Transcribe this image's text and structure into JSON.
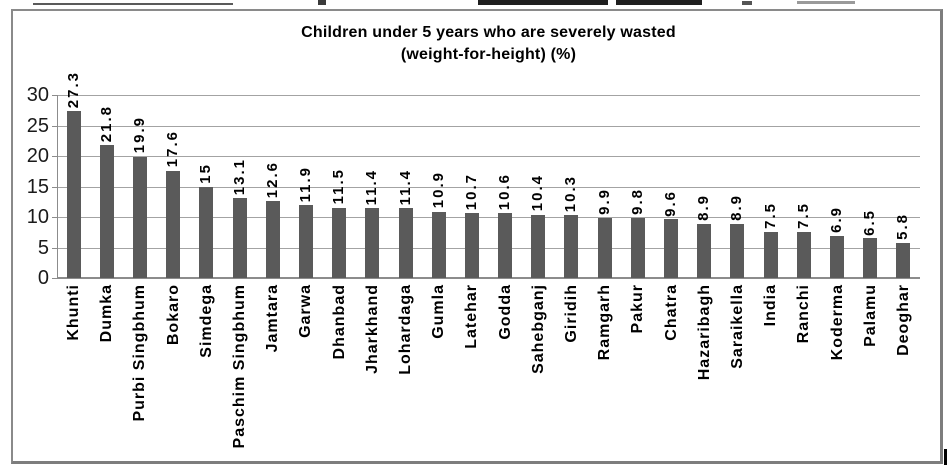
{
  "chart_data": {
    "type": "bar",
    "title_line1": "Children under 5 years who are severely wasted",
    "title_line2": "(weight-for-height) (%)",
    "categories": [
      "Khunti",
      "Dumka",
      "Purbi Singbhum",
      "Bokaro",
      "Simdega",
      "Paschim Singbhum",
      "Jamtara",
      "Garwa",
      "Dhanbad",
      "Jharkhand",
      "Lohardaga",
      "Gumla",
      "Latehar",
      "Godda",
      "Sahebganj",
      "Giridih",
      "Ramgarh",
      "Pakur",
      "Chatra",
      "Hazaribagh",
      "Saraikella",
      "India",
      "Ranchi",
      "Koderma",
      "Palamu",
      "Deoghar"
    ],
    "values": [
      27.3,
      21.8,
      19.9,
      17.6,
      15,
      13.1,
      12.6,
      11.9,
      11.5,
      11.4,
      11.4,
      10.9,
      10.7,
      10.6,
      10.4,
      10.3,
      9.9,
      9.8,
      9.6,
      8.9,
      8.9,
      7.5,
      7.5,
      6.9,
      6.5,
      5.8
    ],
    "value_labels": [
      "27.3",
      "21.8",
      "19.9",
      "17.6",
      "15",
      "13.1",
      "12.6",
      "11.9",
      "11.5",
      "11.4",
      "11.4",
      "10.9",
      "10.7",
      "10.6",
      "10.4",
      "10.3",
      "9.9",
      "9.8",
      "9.6",
      "8.9",
      "8.9",
      "7.5",
      "7.5",
      "6.9",
      "6.5",
      "5.8"
    ],
    "xlabel": "",
    "ylabel": "",
    "ylim": [
      0,
      30
    ],
    "yticks": [
      0,
      5,
      10,
      15,
      20,
      25,
      30
    ],
    "ytick_labels": [
      "0",
      "5",
      "10",
      "15",
      "20",
      "25",
      "30"
    ],
    "grid": true,
    "legend": "none",
    "value_label_rotation": "bottom-to-top",
    "x_label_rotation": "bottom-to-top",
    "colors": {
      "bar": "#5a5a5a",
      "gridline": "#a3a3a3",
      "axis": "#8c8c8c",
      "text": "#1a1a1a",
      "frame_border": "#8a8a8a"
    }
  }
}
